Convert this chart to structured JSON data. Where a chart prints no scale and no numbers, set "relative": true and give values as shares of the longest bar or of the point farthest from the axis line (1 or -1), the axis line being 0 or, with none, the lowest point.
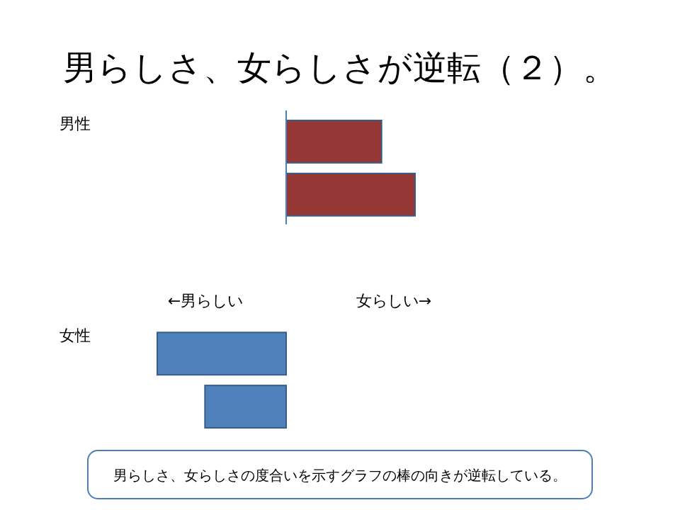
{
  "chart_data": {
    "type": "bar",
    "orientation": "horizontal",
    "relative": true,
    "title": "男らしさ、女らしさが逆転（２）。",
    "categories": [
      "男性",
      null,
      "女性",
      null
    ],
    "values": [
      0.74,
      1,
      -1,
      -0.63
    ],
    "colors": [
      "#953735",
      "#953735",
      "#4f81bd",
      "#4f81bd"
    ],
    "annotations": [
      "←男らしい",
      "女らしい→",
      "男らしさ、女らしさの度合いを示すグラフの棒の向きが逆転している。"
    ],
    "grid": false
  }
}
